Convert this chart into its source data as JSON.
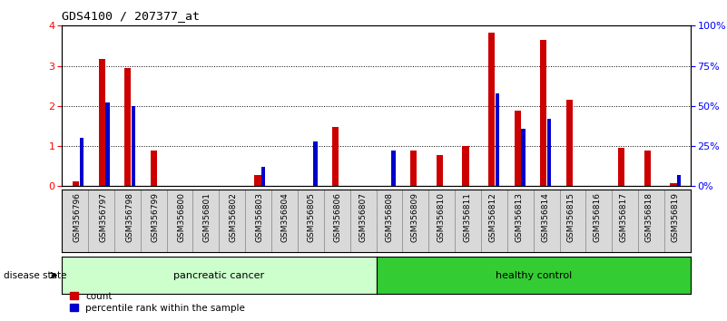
{
  "title": "GDS4100 / 207377_at",
  "samples": [
    "GSM356796",
    "GSM356797",
    "GSM356798",
    "GSM356799",
    "GSM356800",
    "GSM356801",
    "GSM356802",
    "GSM356803",
    "GSM356804",
    "GSM356805",
    "GSM356806",
    "GSM356807",
    "GSM356808",
    "GSM356809",
    "GSM356810",
    "GSM356811",
    "GSM356812",
    "GSM356813",
    "GSM356814",
    "GSM356815",
    "GSM356816",
    "GSM356817",
    "GSM356818",
    "GSM356819"
  ],
  "count_values": [
    0.12,
    3.18,
    2.95,
    0.88,
    0.0,
    0.0,
    0.0,
    0.28,
    0.0,
    0.0,
    1.48,
    0.0,
    0.0,
    0.88,
    0.78,
    1.0,
    3.82,
    1.88,
    3.65,
    2.15,
    0.0,
    0.95,
    0.88,
    0.08
  ],
  "percentile_values": [
    30,
    52,
    50,
    0,
    0,
    0,
    0,
    12,
    0,
    28,
    0,
    0,
    22,
    0,
    0,
    0,
    58,
    36,
    42,
    0,
    0,
    0,
    0,
    7
  ],
  "group_labels": [
    "pancreatic cancer",
    "healthy control"
  ],
  "pancreatic_count": 12,
  "healthy_count": 12,
  "bar_color_red": "#cc0000",
  "bar_color_blue": "#0000cc",
  "left_ylim": [
    0,
    4
  ],
  "right_ylim": [
    0,
    100
  ],
  "left_yticks": [
    0,
    1,
    2,
    3,
    4
  ],
  "right_yticks": [
    0,
    25,
    50,
    75,
    100
  ],
  "right_yticklabels": [
    "0%",
    "25%",
    "50%",
    "75%",
    "100%"
  ],
  "plot_bg": "#ffffff",
  "label_count": "count",
  "label_percentile": "percentile rank within the sample",
  "disease_state_label": "disease state",
  "group_box_color_pc": "#ccffcc",
  "group_box_color_hc": "#33cc33",
  "tick_bg_color": "#d9d9d9"
}
